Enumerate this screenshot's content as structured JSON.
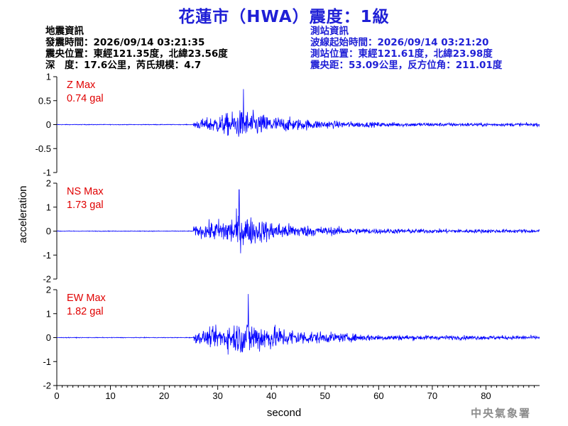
{
  "title": "花蓮市（HWA）震度：1級",
  "earthquake_info": [
    "地震資訊",
    "發震時間：2026/09/14 03:21:35",
    "震央位置：東經121.35度，北緯23.56度",
    "深　度：17.6公里，芮氏規模：4.7"
  ],
  "station_info": [
    "測站資訊",
    "波線起始時間：2026/09/14 03:21:20",
    "測站位置：東經121.61度，北緯23.98度",
    "震央距：53.09公里，反方位角：211.01度"
  ],
  "credit": "中央氣象署",
  "colors": {
    "title": "#1f1fd6",
    "trace": "#0000ff",
    "max_label": "#e00000",
    "station_text": "#1f1fd6"
  },
  "chart_data": {
    "type": "line",
    "xlabel": "second",
    "ylabel": "acceleration",
    "xlim": [
      0,
      90
    ],
    "xticks": [
      "0",
      "10",
      "20",
      "30",
      "40",
      "50",
      "60",
      "70",
      "80"
    ],
    "panels": [
      {
        "name": "Z",
        "max_label": "Z Max",
        "max_value": "0.74 gal",
        "ylim": [
          -1,
          1
        ],
        "yticks": [
          "1",
          "0.5",
          "0",
          "-0.5",
          "-1"
        ],
        "onset_s": 25.5,
        "peak_s": 34.8,
        "peak_gal": 0.74
      },
      {
        "name": "NS",
        "max_label": "NS Max",
        "max_value": "1.73 gal",
        "ylim": [
          -2,
          2
        ],
        "yticks": [
          "2",
          "1",
          "0",
          "-1",
          "-2"
        ],
        "onset_s": 25.5,
        "peak_s": 34.0,
        "peak_gal": 1.73
      },
      {
        "name": "EW",
        "max_label": "EW Max",
        "max_value": "1.82 gal",
        "ylim": [
          -2,
          2
        ],
        "yticks": [
          "2",
          "1",
          "0",
          "-1",
          "-2"
        ],
        "onset_s": 25.5,
        "peak_s": 35.7,
        "peak_gal": 1.82
      }
    ]
  }
}
